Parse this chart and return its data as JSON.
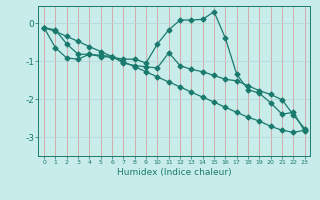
{
  "xlabel": "Humidex (Indice chaleur)",
  "x": [
    0,
    1,
    2,
    3,
    4,
    5,
    6,
    7,
    8,
    9,
    10,
    11,
    12,
    13,
    14,
    15,
    16,
    17,
    18,
    19,
    20,
    21,
    22,
    23
  ],
  "line1": [
    -0.12,
    -0.18,
    -0.55,
    -0.82,
    -0.82,
    -0.88,
    -0.9,
    -0.95,
    -0.95,
    -1.05,
    -0.55,
    -0.18,
    0.08,
    0.08,
    0.1,
    0.3,
    -0.4,
    -1.35,
    -1.75,
    -1.85,
    -2.1,
    -2.4,
    -2.35,
    -2.85
  ],
  "line2": [
    -0.12,
    -0.65,
    -0.92,
    -0.95,
    -0.82,
    -0.85,
    -0.88,
    -1.05,
    -1.12,
    -1.15,
    -1.18,
    -0.78,
    -1.12,
    -1.22,
    -1.28,
    -1.38,
    -1.48,
    -1.52,
    -1.65,
    -1.78,
    -1.88,
    -2.02,
    -2.42,
    -2.78
  ],
  "line3": [
    -0.12,
    -0.22,
    -0.35,
    -0.48,
    -0.62,
    -0.75,
    -0.88,
    -1.02,
    -1.15,
    -1.28,
    -1.42,
    -1.55,
    -1.68,
    -1.82,
    -1.95,
    -2.08,
    -2.22,
    -2.35,
    -2.48,
    -2.58,
    -2.72,
    -2.82,
    -2.88,
    -2.82
  ],
  "line_color": "#1a7a6e",
  "bg_color": "#c8ecea",
  "grid_color_v": "#d4a0a0",
  "grid_color_h": "#b8d8d6",
  "ylim": [
    -3.5,
    0.45
  ],
  "yticks": [
    0,
    -1,
    -2,
    -3
  ],
  "xlim": [
    -0.5,
    23.5
  ],
  "marker": "D",
  "markersize": 2.5,
  "linewidth": 0.9
}
